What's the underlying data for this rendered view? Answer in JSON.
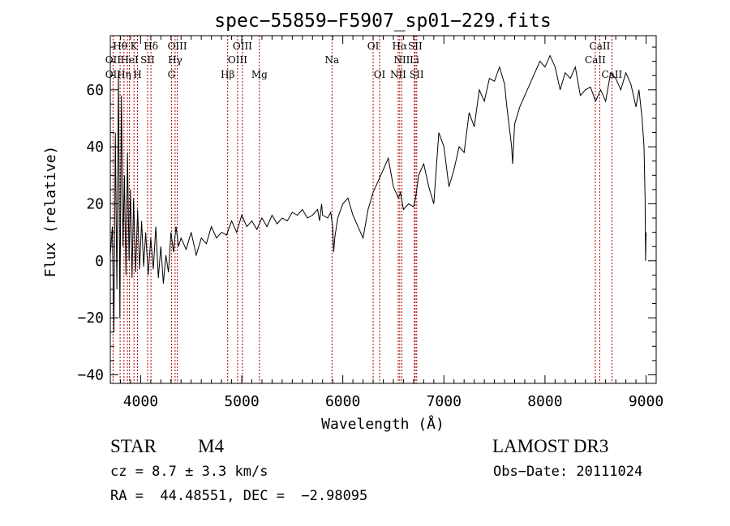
{
  "chart_data": {
    "type": "line",
    "title": "spec−55859−F5907_sp01−229.fits",
    "xlabel": "Wavelength (Å)",
    "ylabel": "Flux (relative)",
    "xlim": [
      3700,
      9100
    ],
    "ylim": [
      -43,
      79
    ],
    "x_ticks": [
      4000,
      5000,
      6000,
      7000,
      8000,
      9000
    ],
    "x_tick_labels": [
      "4000",
      "5000",
      "6000",
      "7000",
      "8000",
      "9000"
    ],
    "y_ticks": [
      -40,
      -20,
      0,
      20,
      40,
      60
    ],
    "y_tick_labels": [
      "−40",
      "−20",
      "0",
      "20",
      "40",
      "60"
    ],
    "series": [
      {
        "name": "flux",
        "x": [
          3700,
          3720,
          3735,
          3750,
          3765,
          3780,
          3795,
          3810,
          3825,
          3840,
          3855,
          3870,
          3885,
          3900,
          3915,
          3930,
          3950,
          3970,
          3990,
          4010,
          4030,
          4050,
          4075,
          4100,
          4125,
          4150,
          4175,
          4200,
          4225,
          4250,
          4275,
          4300,
          4325,
          4350,
          4375,
          4400,
          4450,
          4500,
          4550,
          4600,
          4650,
          4700,
          4750,
          4800,
          4850,
          4900,
          4950,
          5000,
          5050,
          5100,
          5150,
          5200,
          5250,
          5300,
          5350,
          5400,
          5450,
          5500,
          5550,
          5600,
          5650,
          5700,
          5750,
          5770,
          5790,
          5800,
          5850,
          5880,
          5900,
          5910,
          5920,
          5950,
          6000,
          6050,
          6100,
          6150,
          6200,
          6250,
          6300,
          6350,
          6400,
          6450,
          6500,
          6550,
          6570,
          6600,
          6650,
          6700,
          6720,
          6750,
          6800,
          6850,
          6900,
          6950,
          7000,
          7050,
          7100,
          7150,
          7200,
          7250,
          7300,
          7350,
          7400,
          7450,
          7500,
          7550,
          7600,
          7620,
          7650,
          7670,
          7680,
          7700,
          7750,
          7800,
          7850,
          7900,
          7950,
          8000,
          8050,
          8100,
          8150,
          8200,
          8250,
          8300,
          8350,
          8400,
          8450,
          8500,
          8550,
          8600,
          8650,
          8700,
          8750,
          8800,
          8850,
          8900,
          8930,
          8960,
          8980,
          8990,
          8995,
          9000
        ],
        "y": [
          2,
          12,
          -25,
          45,
          -10,
          66,
          -20,
          58,
          5,
          30,
          -5,
          38,
          0,
          25,
          -6,
          22,
          -4,
          18,
          -3,
          14,
          -2,
          10,
          -5,
          8,
          -3,
          12,
          -6,
          5,
          -8,
          2,
          -4,
          10,
          3,
          12,
          5,
          8,
          4,
          10,
          2,
          8,
          6,
          12,
          8,
          10,
          9,
          14,
          10,
          16,
          12,
          14,
          11,
          15,
          12,
          16,
          13,
          15,
          14,
          17,
          16,
          18,
          15,
          16,
          18,
          14,
          20,
          16,
          15,
          17,
          12,
          3,
          8,
          15,
          20,
          22,
          16,
          12,
          8,
          18,
          24,
          28,
          32,
          36,
          26,
          22,
          24,
          18,
          20,
          19,
          22,
          30,
          34,
          26,
          20,
          45,
          40,
          26,
          32,
          40,
          38,
          52,
          47,
          60,
          56,
          64,
          63,
          68,
          62,
          55,
          46,
          40,
          34,
          48,
          54,
          58,
          62,
          66,
          70,
          68,
          72,
          68,
          60,
          66,
          64,
          68,
          58,
          60,
          61,
          56,
          60,
          56,
          66,
          64,
          60,
          66,
          62,
          54,
          60,
          50,
          40,
          22,
          0,
          10
        ]
      }
    ],
    "line_labels": {
      "row1": [
        {
          "text": "Hθ",
          "x": 3797
        },
        {
          "text": "K",
          "x": 3934
        },
        {
          "text": "Hδ",
          "x": 4102
        },
        {
          "text": "OIII",
          "x": 4363
        },
        {
          "text": "OIII",
          "x": 5007
        },
        {
          "text": "OI",
          "x": 6300
        },
        {
          "text": "Hα",
          "x": 6563
        },
        {
          "text": "SII",
          "x": 6716
        },
        {
          "text": "CaII",
          "x": 8542
        }
      ],
      "row2": [
        {
          "text": "OII",
          "x": 3727
        },
        {
          "text": "HeI",
          "x": 3889
        },
        {
          "text": "SII",
          "x": 4069
        },
        {
          "text": "Hγ",
          "x": 4341
        },
        {
          "text": "OIII",
          "x": 4959
        },
        {
          "text": "Na",
          "x": 5893
        },
        {
          "text": "NII",
          "x": 6584
        },
        {
          "text": "Li",
          "x": 6708
        },
        {
          "text": "CaII",
          "x": 8498
        }
      ],
      "row3": [
        {
          "text": "OII",
          "x": 3727
        },
        {
          "text": "Hη",
          "x": 3835
        },
        {
          "text": "H",
          "x": 3969
        },
        {
          "text": "G",
          "x": 4305
        },
        {
          "text": "Hβ",
          "x": 4861
        },
        {
          "text": "Mg",
          "x": 5175
        },
        {
          "text": "OI",
          "x": 6364
        },
        {
          "text": "NII",
          "x": 6548
        },
        {
          "text": "SII",
          "x": 6731
        },
        {
          "text": "CaII",
          "x": 8662
        }
      ]
    },
    "line_markers": [
      3727,
      3797,
      3835,
      3869,
      3889,
      3934,
      3969,
      4069,
      4102,
      4305,
      4341,
      4363,
      4861,
      4959,
      5007,
      5175,
      5893,
      6300,
      6364,
      6548,
      6563,
      6584,
      6708,
      6716,
      6731,
      8498,
      8542,
      8662
    ]
  },
  "info": {
    "object_class": "STAR",
    "subclass": "M4",
    "survey": "LAMOST DR3",
    "redshift": "cz = 8.7 ± 3.3 km/s",
    "obs_date": "Obs−Date: 20111024",
    "coords": "RA =  44.48551, DEC =  −2.98095"
  },
  "colors": {
    "line_marker": "#b00000",
    "spectrum": "#000000",
    "axes": "#000000"
  }
}
